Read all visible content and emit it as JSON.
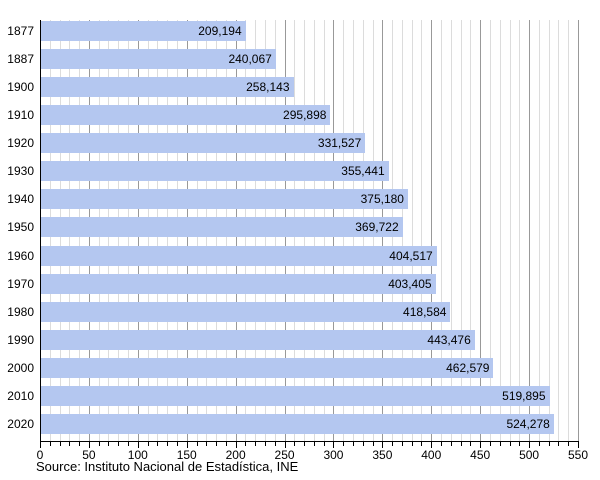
{
  "chart_data": {
    "type": "bar",
    "orientation": "horizontal",
    "title": "",
    "xlabel": "",
    "ylabel": "",
    "categories": [
      "1877",
      "1887",
      "1900",
      "1910",
      "1920",
      "1930",
      "1940",
      "1950",
      "1960",
      "1970",
      "1980",
      "1990",
      "2000",
      "2010",
      "2020"
    ],
    "values": [
      209194,
      240067,
      258143,
      295898,
      331527,
      355441,
      375180,
      369722,
      404517,
      403405,
      418584,
      443476,
      462579,
      519895,
      524278
    ],
    "value_labels": [
      "209,194",
      "240,067",
      "258,143",
      "295,898",
      "331,527",
      "355,441",
      "375,180",
      "369,722",
      "404,517",
      "403,405",
      "418,584",
      "443,476",
      "462,579",
      "519,895",
      "524,278"
    ],
    "xlim_thousands": [
      0,
      550
    ],
    "x_tick_labels": [
      "0",
      "50",
      "100",
      "150",
      "200",
      "250",
      "300",
      "350",
      "400",
      "450",
      "500",
      "550"
    ],
    "x_major_tick_step_thousands": 50,
    "x_minor_tick_step_thousands": 10,
    "grid": true,
    "legend_shown": false,
    "bar_color": "#b4c7f0",
    "grid_minor_color": "#dcdcdc",
    "grid_major_color": "#999999",
    "axis_color": "#000000",
    "source_note": "Source: Instituto Nacional de Estadística, INE"
  }
}
